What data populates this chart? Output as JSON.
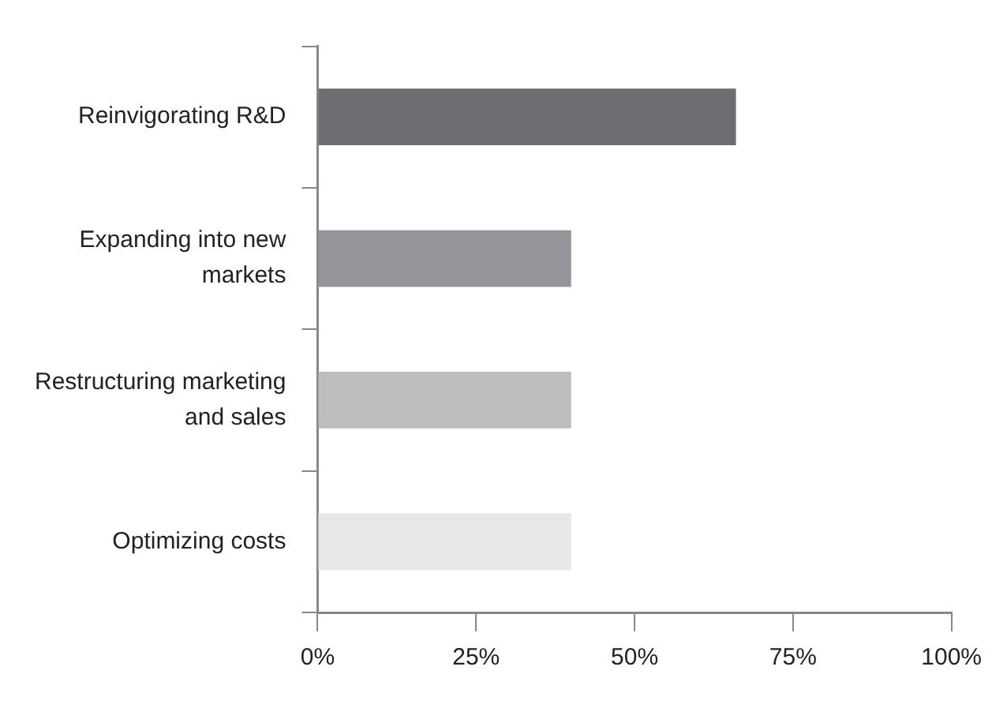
{
  "chart_data": {
    "type": "bar",
    "orientation": "horizontal",
    "categories": [
      "Reinvigorating R&D",
      "Expanding into new markets",
      "Restructuring marketing and sales",
      "Optimizing costs"
    ],
    "values": [
      66,
      40,
      40,
      40
    ],
    "colors": [
      "#6d6e72",
      "#939598",
      "#bcbdbf",
      "#e6e7e8"
    ],
    "xlim": [
      0,
      100
    ],
    "xticks": [
      {
        "value": 0,
        "label": "0%"
      },
      {
        "value": 25,
        "label": "25%"
      },
      {
        "value": 50,
        "label": "50%"
      },
      {
        "value": 75,
        "label": "75%"
      },
      {
        "value": 100,
        "label": "100%"
      }
    ],
    "grid": false,
    "legend": false
  }
}
